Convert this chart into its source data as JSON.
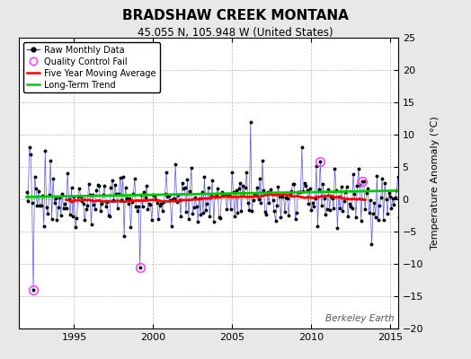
{
  "title": "BRADSHAW CREEK MONTANA",
  "subtitle": "45.055 N, 105.948 W (United States)",
  "ylabel": "Temperature Anomaly (°C)",
  "watermark": "Berkeley Earth",
  "ylim": [
    -20,
    25
  ],
  "xlim": [
    1991.5,
    2015.5
  ],
  "yticks": [
    -20,
    -15,
    -10,
    -5,
    0,
    5,
    10,
    15,
    20,
    25
  ],
  "xticks": [
    1995,
    2000,
    2005,
    2010,
    2015
  ],
  "bg_color": "#e8e8e8",
  "plot_bg_color": "#ffffff",
  "raw_color": "#4444dd",
  "raw_dot_color": "#000000",
  "ma_color": "#ff0000",
  "trend_color": "#00cc00",
  "qc_color": "#ff44ff",
  "seed": 42,
  "n_months": 288,
  "start_year": 1992.0,
  "title_fontsize": 11,
  "subtitle_fontsize": 8.5,
  "tick_labelsize": 8,
  "ylabel_fontsize": 8,
  "legend_fontsize": 7,
  "watermark_fontsize": 7.5
}
